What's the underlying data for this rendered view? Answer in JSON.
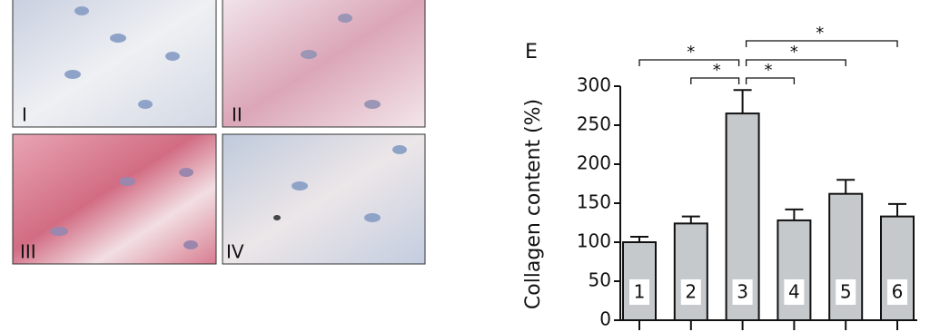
{
  "image_panels": {
    "labels": [
      "I",
      "II",
      "III",
      "IV"
    ]
  },
  "chart_data": {
    "type": "bar",
    "title": "E",
    "ylabel": "Collagen content (%)",
    "categories": [
      "1",
      "2",
      "3",
      "4",
      "5",
      "6"
    ],
    "values": [
      100,
      124,
      265,
      128,
      162,
      133
    ],
    "errors": [
      7,
      9,
      30,
      14,
      18,
      16
    ],
    "color": "#c6c9cc",
    "ylim": [
      0,
      300
    ],
    "yticks": [
      0,
      50,
      100,
      150,
      200,
      250,
      300
    ],
    "significance": [
      {
        "groups": [
          0,
          2
        ],
        "label": "*"
      },
      {
        "groups": [
          1,
          2
        ],
        "label": "*"
      },
      {
        "groups": [
          2,
          3
        ],
        "label": "*"
      },
      {
        "groups": [
          2,
          4
        ],
        "label": "*"
      },
      {
        "groups": [
          2,
          5
        ],
        "label": "*"
      }
    ]
  }
}
